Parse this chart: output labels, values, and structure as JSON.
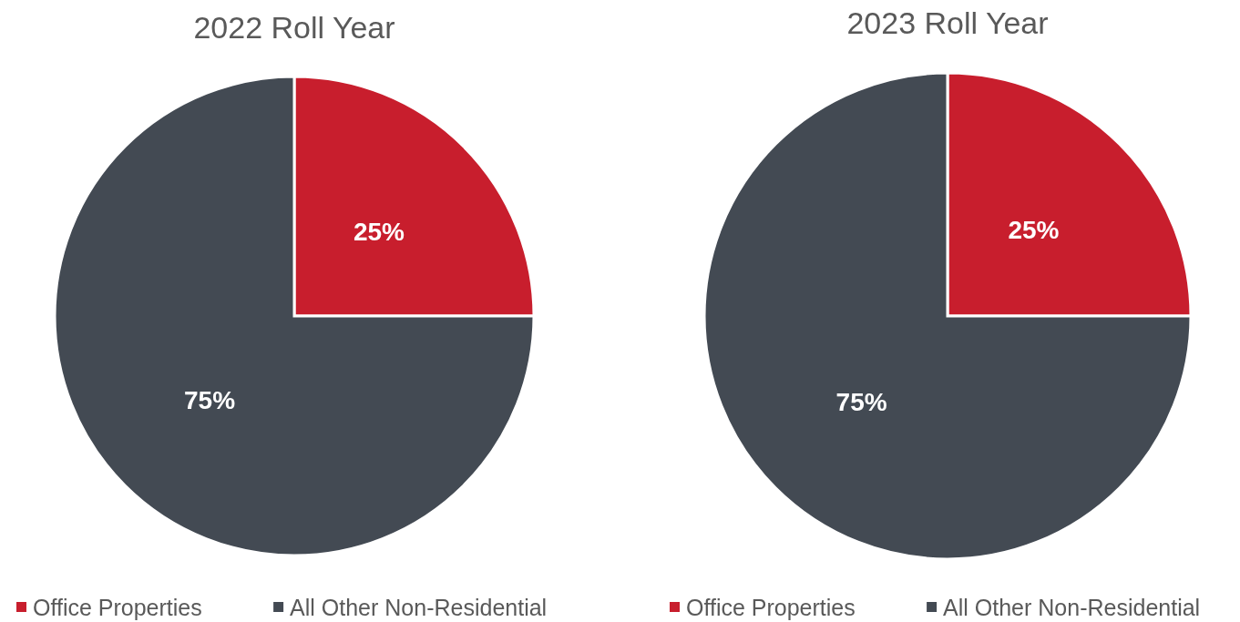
{
  "chart_data": [
    {
      "type": "pie",
      "title": "2022 Roll Year",
      "categories": [
        "Office Properties",
        "All Other Non-Residential"
      ],
      "values": [
        25,
        75
      ],
      "value_labels": [
        "25%",
        "75%"
      ],
      "colors": [
        "#c81e2d",
        "#434a53"
      ],
      "legend": "bottom"
    },
    {
      "type": "pie",
      "title": "2023 Roll Year",
      "categories": [
        "Office Properties",
        "All Other Non-Residential"
      ],
      "values": [
        25,
        75
      ],
      "value_labels": [
        "25%",
        "75%"
      ],
      "colors": [
        "#c81e2d",
        "#434a53"
      ],
      "legend": "bottom"
    }
  ]
}
